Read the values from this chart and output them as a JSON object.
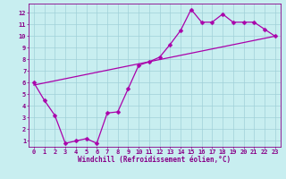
{
  "title": "",
  "xlabel": "Windchill (Refroidissement éolien,°C)",
  "ylabel": "",
  "bg_color": "#c8eef0",
  "line_color": "#aa00aa",
  "xlim": [
    -0.5,
    23.5
  ],
  "ylim": [
    0.5,
    12.8
  ],
  "xticks": [
    0,
    1,
    2,
    3,
    4,
    5,
    6,
    7,
    8,
    9,
    10,
    11,
    12,
    13,
    14,
    15,
    16,
    17,
    18,
    19,
    20,
    21,
    22,
    23
  ],
  "yticks": [
    1,
    2,
    3,
    4,
    5,
    6,
    7,
    8,
    9,
    10,
    11,
    12
  ],
  "line1_x": [
    0,
    1,
    2,
    3,
    4,
    5,
    6,
    7,
    8,
    9,
    10,
    11,
    12,
    13,
    14,
    15,
    16,
    17,
    18,
    19,
    20,
    21,
    22,
    23
  ],
  "line1_y": [
    6.0,
    4.5,
    3.2,
    0.8,
    1.0,
    1.2,
    0.8,
    3.4,
    3.5,
    5.5,
    7.5,
    7.8,
    8.2,
    9.3,
    10.5,
    12.3,
    11.2,
    11.2,
    11.9,
    11.2,
    11.2,
    11.2,
    10.6,
    10.0
  ],
  "line2_x": [
    0,
    23
  ],
  "line2_y": [
    5.8,
    10.0
  ],
  "grid_color": "#a0d0d8",
  "marker": "D",
  "marker_size": 2.5,
  "font_color": "#880088",
  "tick_fontsize": 5.0,
  "xlabel_fontsize": 5.5
}
